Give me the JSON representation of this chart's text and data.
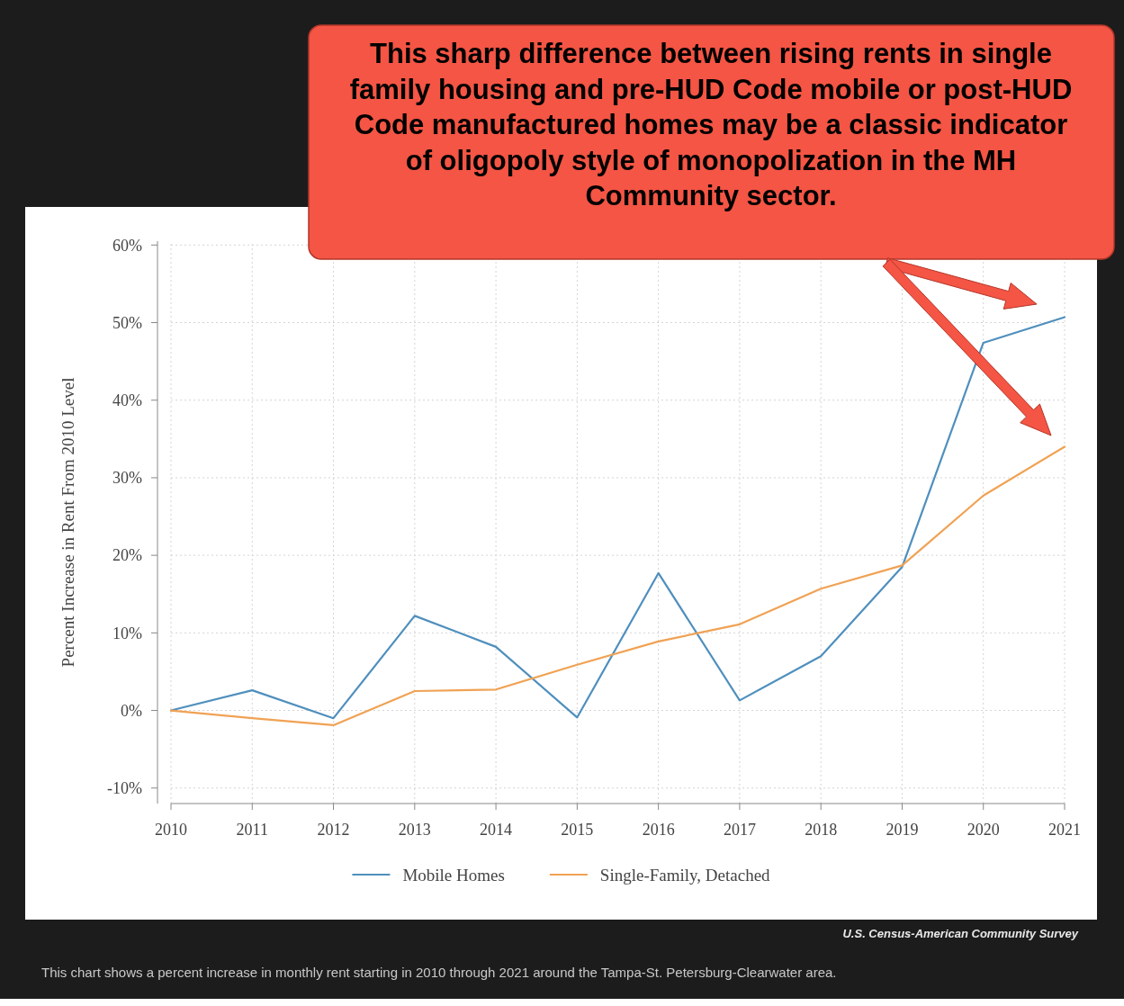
{
  "chart_data": {
    "type": "line",
    "ylabel": "Percent Increase in Rent From 2010 Level",
    "x": [
      2010,
      2011,
      2012,
      2013,
      2014,
      2015,
      2016,
      2017,
      2018,
      2019,
      2020,
      2021
    ],
    "xlim": [
      2010,
      2021
    ],
    "xticks": [
      2010,
      2011,
      2012,
      2013,
      2014,
      2015,
      2016,
      2017,
      2018,
      2019,
      2020,
      2021
    ],
    "ylim": [
      -12,
      60.5
    ],
    "yticks": [
      {
        "value": -10,
        "label": "-10%"
      },
      {
        "value": 0,
        "label": "0%"
      },
      {
        "value": 10,
        "label": "10%"
      },
      {
        "value": 20,
        "label": "20%"
      },
      {
        "value": 30,
        "label": "30%"
      },
      {
        "value": 40,
        "label": "40%"
      },
      {
        "value": 50,
        "label": "50%"
      },
      {
        "value": 60,
        "label": "60%"
      }
    ],
    "series": [
      {
        "name": "Mobile Homes",
        "color": "#4f8fbd",
        "values": [
          0,
          2.6,
          -1.0,
          12.2,
          8.2,
          -0.9,
          17.7,
          1.3,
          7.0,
          18.5,
          47.4,
          50.7
        ]
      },
      {
        "name": "Single-Family, Detached",
        "color": "#f0a254",
        "values": [
          0,
          -1.0,
          -1.9,
          2.5,
          2.7,
          5.9,
          8.9,
          11.1,
          15.7,
          18.7,
          27.7,
          34.0
        ]
      }
    ],
    "grid": true,
    "legend": "bottom",
    "marker": "none",
    "line_style": "solid",
    "annotations": [
      "This sharp difference between rising rents in single family housing and pre-HUD Code mobile or post-HUD Code manufactured homes may be a classic indicator of oligopoly style of monopolization in the MH Community sector.",
      "U.S. Census-American Community Survey",
      "This chart shows a percent increase in monthly rent starting in 2010 through 2021 around the Tampa-St. Petersburg-Clearwater area."
    ]
  }
}
